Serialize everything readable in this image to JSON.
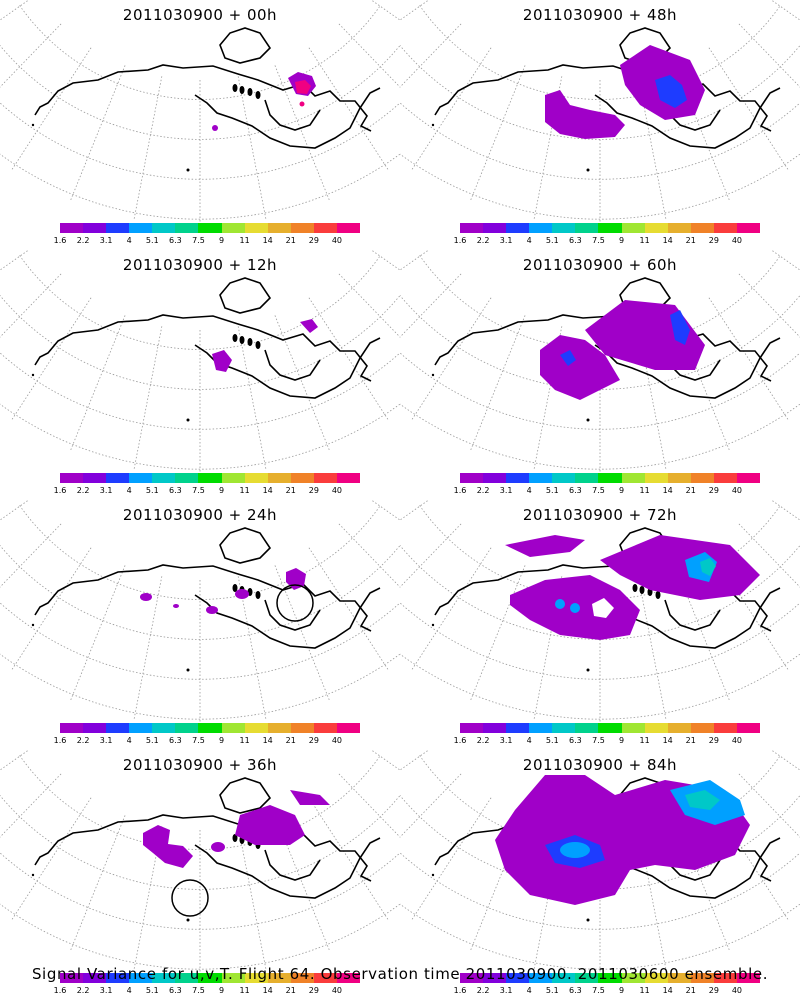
{
  "colorbar": {
    "colors": [
      "#a000c8",
      "#8200dc",
      "#1e3cff",
      "#00a0ff",
      "#00c8c8",
      "#00d28c",
      "#00dc00",
      "#a0e632",
      "#e6dc32",
      "#e6af2d",
      "#f08228",
      "#fa3c3c",
      "#f00082"
    ],
    "labels": [
      "1.6",
      "2.2",
      "3.1",
      "4",
      "5.1",
      "6.3",
      "7.5",
      "9",
      "11",
      "14",
      "21",
      "29",
      "40"
    ]
  },
  "panels": [
    {
      "title": "2011030900 + 00h"
    },
    {
      "title": "2011030900 + 48h"
    },
    {
      "title": "2011030900 + 12h"
    },
    {
      "title": "2011030900 + 60h"
    },
    {
      "title": "2011030900 + 24h"
    },
    {
      "title": "2011030900 + 72h"
    },
    {
      "title": "2011030900 + 36h"
    },
    {
      "title": "2011030900 + 84h"
    }
  ],
  "caption": "Signal Variance for u,v,T. Flight 64. Observation time 2011030900. 2011030600 ensemble."
}
